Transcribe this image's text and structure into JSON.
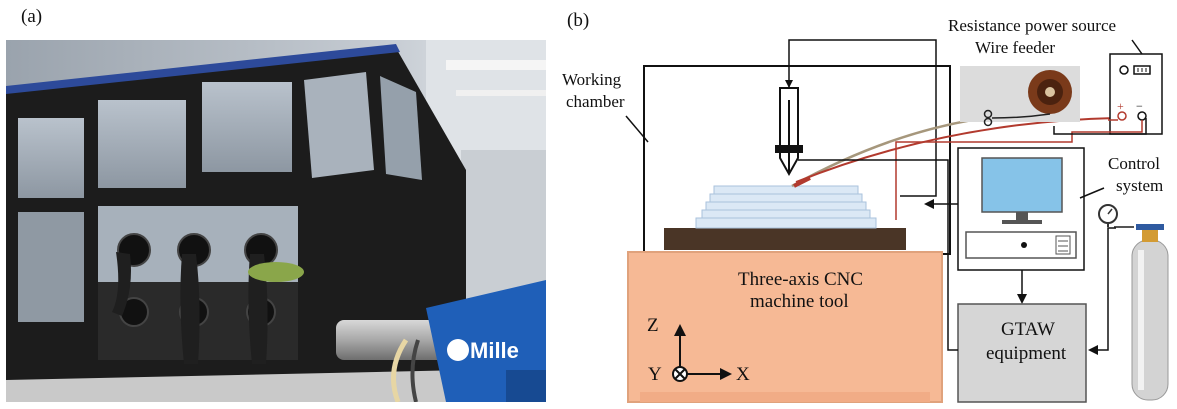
{
  "panels": {
    "a": {
      "label": "(a)"
    },
    "b": {
      "label": "(b)"
    }
  },
  "photo": {
    "brand_text": "Mille"
  },
  "diagram": {
    "labels": {
      "power_source": "Resistance power source",
      "wire_feeder": "Wire feeder",
      "working_chamber_l1": "Working",
      "working_chamber_l2": "chamber",
      "control_l1": "Control",
      "control_l2": "system",
      "cnc_l1": "Three-axis CNC",
      "cnc_l2": "machine tool",
      "gtaw_l1": "GTAW",
      "gtaw_l2": "equipment"
    },
    "axes": {
      "z": "Z",
      "y": "Y",
      "x": "X"
    },
    "power_terminals": {
      "plus": "+",
      "minus": "−"
    },
    "colors": {
      "cnc_fill": "#f6b995",
      "cnc_stroke": "#e0a27c",
      "gtaw_fill": "#d6d6d6",
      "monitor": "#86c3e8",
      "build_plate": "#4a3526",
      "feeder_panel": "#dcdcdc",
      "spool": "#7a3a1a"
    }
  }
}
